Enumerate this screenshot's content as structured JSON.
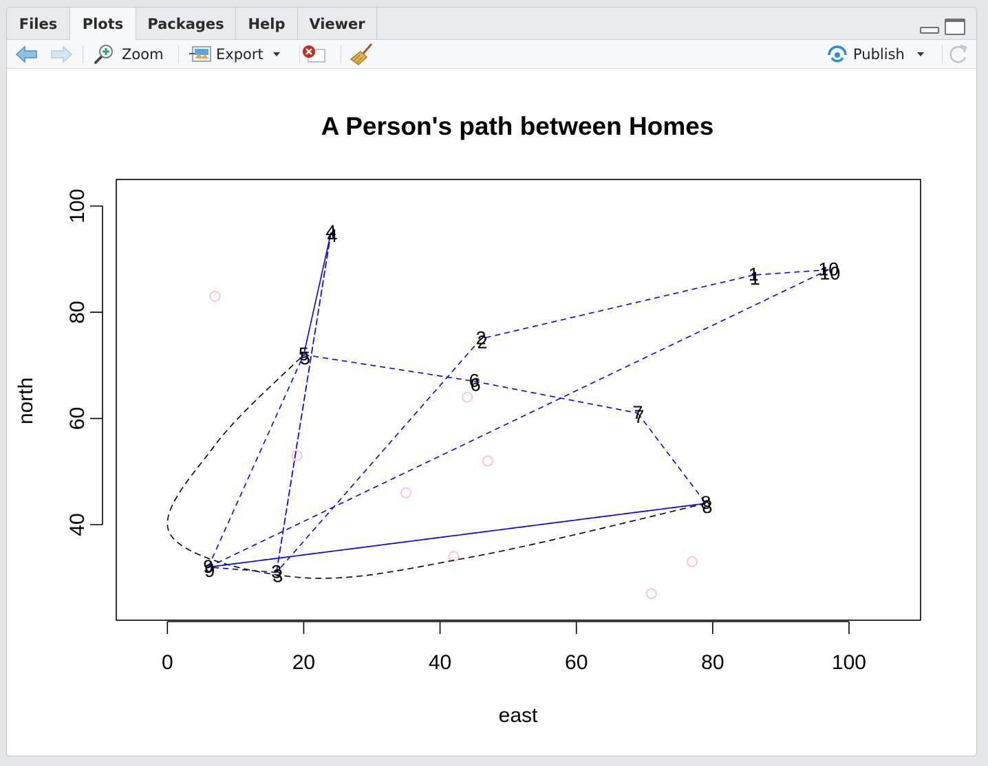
{
  "tabs": [
    {
      "label": "Files",
      "active": false
    },
    {
      "label": "Plots",
      "active": true
    },
    {
      "label": "Packages",
      "active": false
    },
    {
      "label": "Help",
      "active": false
    },
    {
      "label": "Viewer",
      "active": false
    }
  ],
  "toolbar": {
    "zoom_label": "Zoom",
    "export_label": "Export",
    "publish_label": "Publish"
  },
  "colors": {
    "path_blue": "#0000ff",
    "path_black": "#000000",
    "points_pink": "#ffc0cb",
    "publish_blue": "#2a8bd6"
  },
  "icons": [
    "back-arrow-icon",
    "forward-arrow-icon",
    "zoom-icon",
    "export-icon",
    "remove-plot-icon",
    "clear-all-broom-icon",
    "publish-icon",
    "refresh-icon",
    "minimize-icon",
    "maximize-icon"
  ],
  "chart_data": {
    "type": "scatter",
    "title": "A Person's path between Homes",
    "xlabel": "east",
    "ylabel": "north",
    "xlim": [
      -7.5,
      110.5
    ],
    "ylim": [
      22,
      105
    ],
    "x_ticks": [
      0,
      20,
      40,
      60,
      80,
      100
    ],
    "y_ticks": [
      40,
      60,
      80,
      100
    ],
    "grid": false,
    "legend": "none",
    "homes": [
      {
        "label": "1",
        "x": 86,
        "y": 87
      },
      {
        "label": "2",
        "x": 46,
        "y": 75
      },
      {
        "label": "3",
        "x": 16,
        "y": 31
      },
      {
        "label": "4",
        "x": 24,
        "y": 95
      },
      {
        "label": "5",
        "x": 20,
        "y": 72
      },
      {
        "label": "6",
        "x": 45,
        "y": 67
      },
      {
        "label": "7",
        "x": 69,
        "y": 61
      },
      {
        "label": "8",
        "x": 79,
        "y": 44
      },
      {
        "label": "9",
        "x": 6,
        "y": 32
      },
      {
        "label": "10",
        "x": 97,
        "y": 88
      }
    ],
    "path_order": [
      10,
      1,
      2,
      3,
      4,
      5,
      6,
      7,
      8,
      9,
      5,
      4,
      3,
      9,
      8,
      9,
      10
    ],
    "other_points": [
      {
        "x": 7,
        "y": 83
      },
      {
        "x": 19,
        "y": 53
      },
      {
        "x": 35,
        "y": 46
      },
      {
        "x": 44,
        "y": 64
      },
      {
        "x": 47,
        "y": 52
      },
      {
        "x": 42,
        "y": 34
      },
      {
        "x": 71,
        "y": 27
      },
      {
        "x": 77,
        "y": 33
      }
    ],
    "curve_points": [
      {
        "x": 79,
        "y": 44
      },
      {
        "x": 45,
        "y": 34
      },
      {
        "x": 20,
        "y": 30
      },
      {
        "x": 0.5,
        "y": 38
      },
      {
        "x": 7,
        "y": 55
      },
      {
        "x": 20,
        "y": 72
      }
    ]
  }
}
